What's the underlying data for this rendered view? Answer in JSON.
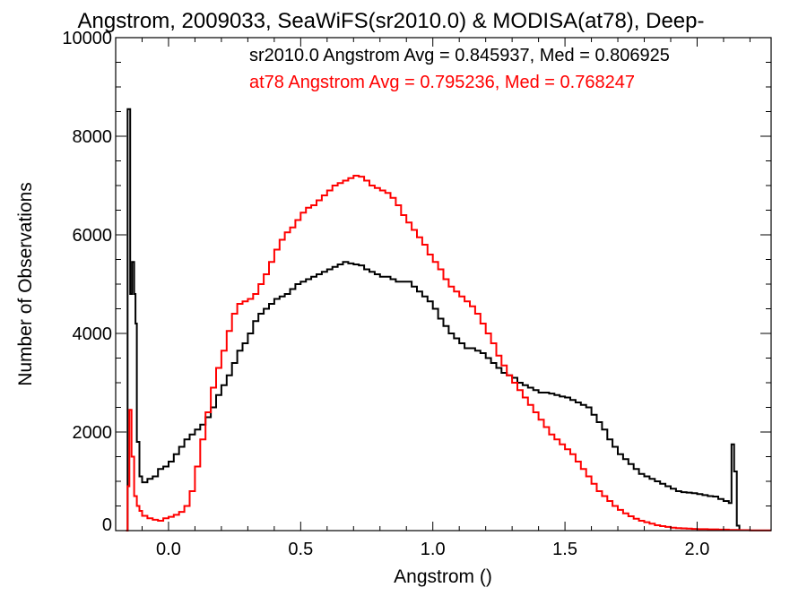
{
  "chart_data": {
    "type": "line",
    "title": "Angstrom, 2009033, SeaWiFS(sr2010.0) & MODISA(at78), Deep-",
    "xlabel": "Angstrom ()",
    "ylabel": "Number of Observations",
    "xlim": [
      -0.2,
      2.28
    ],
    "ylim": [
      0,
      10000
    ],
    "xticks": [
      "0.0",
      "0.5",
      "1.0",
      "1.5",
      "2.0"
    ],
    "yticks": [
      "0",
      "2000",
      "4000",
      "6000",
      "8000",
      "10000"
    ],
    "grid": false,
    "annotations": [
      {
        "text": "sr2010.0 Angstrom Avg = 0.845937, Med = 0.806925",
        "color": "#000000"
      },
      {
        "text": "at78 Angstrom Avg = 0.795236, Med = 0.768247",
        "color": "#ff0000"
      }
    ],
    "series": [
      {
        "name": "sr2010.0",
        "color": "#000000",
        "points": [
          [
            -0.16,
            0
          ],
          [
            -0.155,
            8550
          ],
          [
            -0.145,
            4800
          ],
          [
            -0.138,
            5450
          ],
          [
            -0.13,
            4800
          ],
          [
            -0.125,
            4200
          ],
          [
            -0.12,
            1800
          ],
          [
            -0.11,
            1100
          ],
          [
            -0.1,
            980
          ],
          [
            -0.08,
            1050
          ],
          [
            -0.06,
            1100
          ],
          [
            -0.04,
            1250
          ],
          [
            -0.02,
            1300
          ],
          [
            0.0,
            1400
          ],
          [
            0.02,
            1550
          ],
          [
            0.04,
            1700
          ],
          [
            0.06,
            1850
          ],
          [
            0.08,
            1950
          ],
          [
            0.1,
            2050
          ],
          [
            0.12,
            2150
          ],
          [
            0.14,
            2300
          ],
          [
            0.16,
            2500
          ],
          [
            0.18,
            2750
          ],
          [
            0.2,
            2950
          ],
          [
            0.22,
            3150
          ],
          [
            0.24,
            3400
          ],
          [
            0.26,
            3650
          ],
          [
            0.28,
            3800
          ],
          [
            0.3,
            4000
          ],
          [
            0.32,
            4250
          ],
          [
            0.34,
            4400
          ],
          [
            0.36,
            4500
          ],
          [
            0.38,
            4600
          ],
          [
            0.4,
            4700
          ],
          [
            0.42,
            4750
          ],
          [
            0.44,
            4800
          ],
          [
            0.46,
            4900
          ],
          [
            0.48,
            5000
          ],
          [
            0.5,
            5050
          ],
          [
            0.52,
            5100
          ],
          [
            0.54,
            5150
          ],
          [
            0.56,
            5200
          ],
          [
            0.58,
            5250
          ],
          [
            0.6,
            5300
          ],
          [
            0.62,
            5350
          ],
          [
            0.64,
            5400
          ],
          [
            0.66,
            5450
          ],
          [
            0.68,
            5420
          ],
          [
            0.7,
            5400
          ],
          [
            0.72,
            5380
          ],
          [
            0.74,
            5300
          ],
          [
            0.76,
            5250
          ],
          [
            0.78,
            5200
          ],
          [
            0.8,
            5150
          ],
          [
            0.82,
            5150
          ],
          [
            0.84,
            5100
          ],
          [
            0.86,
            5050
          ],
          [
            0.88,
            5050
          ],
          [
            0.9,
            5050
          ],
          [
            0.92,
            4950
          ],
          [
            0.94,
            4850
          ],
          [
            0.96,
            4750
          ],
          [
            0.98,
            4650
          ],
          [
            1.0,
            4500
          ],
          [
            1.02,
            4300
          ],
          [
            1.04,
            4150
          ],
          [
            1.06,
            4000
          ],
          [
            1.08,
            3900
          ],
          [
            1.1,
            3800
          ],
          [
            1.12,
            3700
          ],
          [
            1.14,
            3700
          ],
          [
            1.16,
            3650
          ],
          [
            1.18,
            3600
          ],
          [
            1.2,
            3500
          ],
          [
            1.22,
            3400
          ],
          [
            1.24,
            3300
          ],
          [
            1.26,
            3200
          ],
          [
            1.28,
            3150
          ],
          [
            1.3,
            3100
          ],
          [
            1.32,
            3000
          ],
          [
            1.34,
            2950
          ],
          [
            1.36,
            2900
          ],
          [
            1.38,
            2850
          ],
          [
            1.4,
            2800
          ],
          [
            1.42,
            2800
          ],
          [
            1.44,
            2780
          ],
          [
            1.46,
            2750
          ],
          [
            1.48,
            2720
          ],
          [
            1.5,
            2700
          ],
          [
            1.52,
            2650
          ],
          [
            1.54,
            2600
          ],
          [
            1.56,
            2550
          ],
          [
            1.58,
            2500
          ],
          [
            1.6,
            2350
          ],
          [
            1.62,
            2200
          ],
          [
            1.64,
            2050
          ],
          [
            1.66,
            1850
          ],
          [
            1.68,
            1700
          ],
          [
            1.7,
            1550
          ],
          [
            1.72,
            1450
          ],
          [
            1.74,
            1350
          ],
          [
            1.76,
            1250
          ],
          [
            1.78,
            1150
          ],
          [
            1.8,
            1100
          ],
          [
            1.82,
            1050
          ],
          [
            1.84,
            1000
          ],
          [
            1.86,
            950
          ],
          [
            1.88,
            900
          ],
          [
            1.9,
            850
          ],
          [
            1.92,
            800
          ],
          [
            1.94,
            780
          ],
          [
            1.96,
            770
          ],
          [
            1.98,
            760
          ],
          [
            2.0,
            740
          ],
          [
            2.02,
            720
          ],
          [
            2.04,
            700
          ],
          [
            2.06,
            690
          ],
          [
            2.08,
            640
          ],
          [
            2.1,
            600
          ],
          [
            2.12,
            560
          ],
          [
            2.13,
            1750
          ],
          [
            2.14,
            1200
          ],
          [
            2.15,
            100
          ],
          [
            2.16,
            0
          ]
        ]
      },
      {
        "name": "at78",
        "color": "#ff0000",
        "points": [
          [
            -0.16,
            0
          ],
          [
            -0.155,
            900
          ],
          [
            -0.148,
            2450
          ],
          [
            -0.14,
            1500
          ],
          [
            -0.13,
            700
          ],
          [
            -0.12,
            500
          ],
          [
            -0.11,
            400
          ],
          [
            -0.1,
            300
          ],
          [
            -0.08,
            250
          ],
          [
            -0.06,
            220
          ],
          [
            -0.04,
            200
          ],
          [
            -0.02,
            250
          ],
          [
            0.0,
            280
          ],
          [
            0.02,
            320
          ],
          [
            0.04,
            380
          ],
          [
            0.06,
            500
          ],
          [
            0.08,
            800
          ],
          [
            0.1,
            1300
          ],
          [
            0.12,
            1850
          ],
          [
            0.14,
            2400
          ],
          [
            0.16,
            2900
          ],
          [
            0.18,
            3300
          ],
          [
            0.2,
            3650
          ],
          [
            0.22,
            4050
          ],
          [
            0.24,
            4400
          ],
          [
            0.26,
            4600
          ],
          [
            0.28,
            4650
          ],
          [
            0.3,
            4700
          ],
          [
            0.32,
            4800
          ],
          [
            0.34,
            5000
          ],
          [
            0.36,
            5200
          ],
          [
            0.38,
            5450
          ],
          [
            0.4,
            5700
          ],
          [
            0.42,
            5900
          ],
          [
            0.44,
            6050
          ],
          [
            0.46,
            6150
          ],
          [
            0.48,
            6300
          ],
          [
            0.5,
            6450
          ],
          [
            0.52,
            6550
          ],
          [
            0.54,
            6600
          ],
          [
            0.56,
            6700
          ],
          [
            0.58,
            6800
          ],
          [
            0.6,
            6900
          ],
          [
            0.62,
            7000
          ],
          [
            0.64,
            7050
          ],
          [
            0.66,
            7100
          ],
          [
            0.68,
            7150
          ],
          [
            0.7,
            7200
          ],
          [
            0.72,
            7180
          ],
          [
            0.74,
            7100
          ],
          [
            0.76,
            7000
          ],
          [
            0.78,
            6950
          ],
          [
            0.8,
            6900
          ],
          [
            0.82,
            6850
          ],
          [
            0.84,
            6750
          ],
          [
            0.86,
            6600
          ],
          [
            0.88,
            6400
          ],
          [
            0.9,
            6250
          ],
          [
            0.92,
            6100
          ],
          [
            0.94,
            5950
          ],
          [
            0.96,
            5800
          ],
          [
            0.98,
            5600
          ],
          [
            1.0,
            5450
          ],
          [
            1.02,
            5300
          ],
          [
            1.04,
            5100
          ],
          [
            1.06,
            4950
          ],
          [
            1.08,
            4850
          ],
          [
            1.1,
            4750
          ],
          [
            1.12,
            4650
          ],
          [
            1.14,
            4550
          ],
          [
            1.16,
            4400
          ],
          [
            1.18,
            4200
          ],
          [
            1.2,
            4000
          ],
          [
            1.22,
            3800
          ],
          [
            1.24,
            3550
          ],
          [
            1.26,
            3350
          ],
          [
            1.28,
            3150
          ],
          [
            1.3,
            3000
          ],
          [
            1.32,
            2850
          ],
          [
            1.34,
            2700
          ],
          [
            1.36,
            2550
          ],
          [
            1.38,
            2400
          ],
          [
            1.4,
            2250
          ],
          [
            1.42,
            2100
          ],
          [
            1.44,
            1950
          ],
          [
            1.46,
            1850
          ],
          [
            1.48,
            1750
          ],
          [
            1.5,
            1650
          ],
          [
            1.52,
            1550
          ],
          [
            1.54,
            1400
          ],
          [
            1.56,
            1250
          ],
          [
            1.58,
            1100
          ],
          [
            1.6,
            950
          ],
          [
            1.62,
            800
          ],
          [
            1.64,
            700
          ],
          [
            1.66,
            600
          ],
          [
            1.68,
            500
          ],
          [
            1.7,
            420
          ],
          [
            1.72,
            350
          ],
          [
            1.74,
            290
          ],
          [
            1.76,
            240
          ],
          [
            1.78,
            200
          ],
          [
            1.8,
            170
          ],
          [
            1.82,
            140
          ],
          [
            1.84,
            110
          ],
          [
            1.86,
            90
          ],
          [
            1.88,
            75
          ],
          [
            1.9,
            60
          ],
          [
            1.92,
            50
          ],
          [
            1.94,
            45
          ],
          [
            1.96,
            40
          ],
          [
            1.98,
            35
          ],
          [
            2.0,
            30
          ],
          [
            2.04,
            25
          ],
          [
            2.08,
            20
          ],
          [
            2.12,
            15
          ],
          [
            2.16,
            10
          ],
          [
            2.2,
            5
          ],
          [
            2.28,
            5
          ]
        ]
      }
    ]
  }
}
